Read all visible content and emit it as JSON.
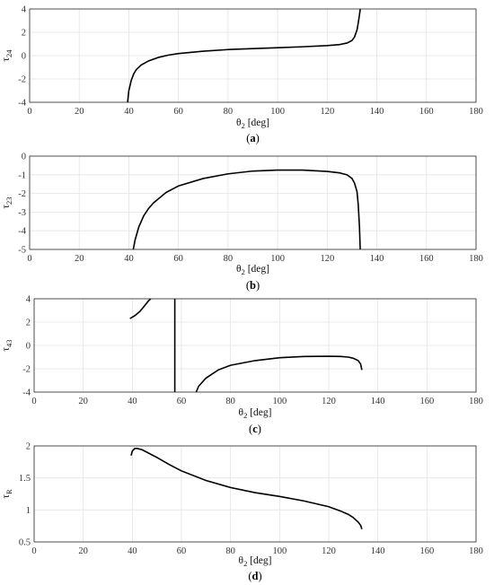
{
  "chart_data": [
    {
      "type": "line",
      "panel": "a",
      "caption": "(a)",
      "xlabel_main": "θ",
      "xlabel_sub": "2",
      "xlabel_unit": " [deg]",
      "ylabel_main": "τ",
      "ylabel_sub": "24",
      "xlim": [
        0,
        180
      ],
      "ylim": [
        -4,
        4
      ],
      "xticks": [
        0,
        20,
        40,
        60,
        80,
        100,
        120,
        140,
        160,
        180
      ],
      "yticks": [
        -4,
        -2,
        0,
        2,
        4
      ],
      "grid": true,
      "series": [
        {
          "x": [
            39.5,
            40,
            41,
            42,
            43,
            45,
            48,
            52,
            56,
            60,
            70,
            80,
            90,
            100,
            110,
            120,
            125,
            128,
            130,
            131,
            132,
            132.5,
            133,
            133.3
          ],
          "y": [
            -4.0,
            -3.0,
            -2.1,
            -1.55,
            -1.2,
            -0.8,
            -0.45,
            -0.15,
            0.05,
            0.18,
            0.38,
            0.52,
            0.6,
            0.68,
            0.76,
            0.86,
            0.95,
            1.08,
            1.3,
            1.6,
            2.2,
            2.8,
            3.5,
            4.0
          ]
        }
      ]
    },
    {
      "type": "line",
      "panel": "b",
      "caption": "(b)",
      "xlabel_main": "θ",
      "xlabel_sub": "2",
      "xlabel_unit": " [deg]",
      "ylabel_main": "τ",
      "ylabel_sub": "23",
      "xlim": [
        0,
        180
      ],
      "ylim": [
        -5,
        0
      ],
      "xticks": [
        0,
        20,
        40,
        60,
        80,
        100,
        120,
        140,
        160,
        180
      ],
      "yticks": [
        -5,
        -4,
        -3,
        -2,
        -1,
        0
      ],
      "grid": true,
      "series": [
        {
          "x": [
            41.8,
            42.5,
            44,
            46,
            48,
            50,
            55,
            60,
            70,
            80,
            90,
            100,
            110,
            120,
            125,
            128,
            130,
            131,
            132,
            132.5,
            133,
            133.3
          ],
          "y": [
            -5.0,
            -4.5,
            -3.8,
            -3.2,
            -2.8,
            -2.5,
            -1.95,
            -1.6,
            -1.2,
            -0.95,
            -0.8,
            -0.75,
            -0.75,
            -0.82,
            -0.9,
            -1.0,
            -1.2,
            -1.45,
            -1.9,
            -2.6,
            -3.8,
            -5.0
          ]
        }
      ]
    },
    {
      "type": "line",
      "panel": "c",
      "caption": "(c)",
      "xlabel_main": "θ",
      "xlabel_sub": "2",
      "xlabel_unit": " [deg]",
      "ylabel_main": "τ",
      "ylabel_sub": "43",
      "xlim": [
        0,
        180
      ],
      "ylim": [
        -4,
        4
      ],
      "xticks": [
        0,
        20,
        40,
        60,
        80,
        100,
        120,
        140,
        160,
        180
      ],
      "yticks": [
        -4,
        -2,
        0,
        2,
        4
      ],
      "grid": true,
      "series": [
        {
          "x": [
            39,
            41,
            43,
            45,
            46.5,
            47.5
          ],
          "y": [
            2.3,
            2.55,
            2.9,
            3.4,
            3.8,
            4.0
          ]
        },
        {
          "x": [
            57.3,
            57.3
          ],
          "y": [
            4.0,
            -4.0
          ]
        },
        {
          "x": [
            66,
            67,
            70,
            75,
            80,
            90,
            100,
            110,
            120,
            125,
            128,
            130,
            132,
            133,
            133.5
          ],
          "y": [
            -4.0,
            -3.5,
            -2.8,
            -2.1,
            -1.7,
            -1.3,
            -1.05,
            -0.95,
            -0.93,
            -0.95,
            -1.0,
            -1.1,
            -1.3,
            -1.6,
            -2.1
          ]
        }
      ]
    },
    {
      "type": "line",
      "panel": "d",
      "caption": "(d)",
      "xlabel_main": "θ",
      "xlabel_sub": "2",
      "xlabel_unit": " [deg]",
      "ylabel_main": "τ",
      "ylabel_sub": "R",
      "xlim": [
        0,
        180
      ],
      "ylim": [
        0.5,
        2
      ],
      "xticks": [
        0,
        20,
        40,
        60,
        80,
        100,
        120,
        140,
        160,
        180
      ],
      "yticks": [
        0.5,
        1,
        1.5,
        2
      ],
      "grid": true,
      "series": [
        {
          "x": [
            39.5,
            40,
            41,
            42,
            44,
            46,
            50,
            55,
            60,
            70,
            80,
            90,
            100,
            110,
            120,
            125,
            128,
            130,
            132,
            133,
            133.5
          ],
          "y": [
            1.85,
            1.92,
            1.96,
            1.96,
            1.94,
            1.9,
            1.82,
            1.71,
            1.61,
            1.46,
            1.35,
            1.27,
            1.21,
            1.14,
            1.05,
            0.98,
            0.93,
            0.88,
            0.81,
            0.76,
            0.7
          ]
        }
      ]
    }
  ]
}
